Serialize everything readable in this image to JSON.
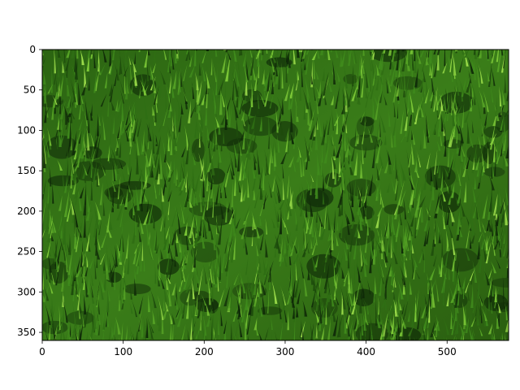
{
  "chart_data": {
    "type": "heatmap",
    "content": "image",
    "title": "",
    "xlabel": "",
    "ylabel": "",
    "xlim": [
      0,
      576
    ],
    "ylim": [
      360,
      0
    ],
    "x_ticks": [
      0,
      100,
      200,
      300,
      400,
      500
    ],
    "y_ticks": [
      0,
      50,
      100,
      150,
      200,
      250,
      300,
      350
    ],
    "y_axis_inverted": true,
    "grid": false,
    "legend": "none",
    "colors": {
      "grass_dark": "#0f2a08",
      "grass_mid": "#2f6e14",
      "grass_light": "#7cc837",
      "axis": "#000000",
      "background": "#ffffff"
    }
  }
}
